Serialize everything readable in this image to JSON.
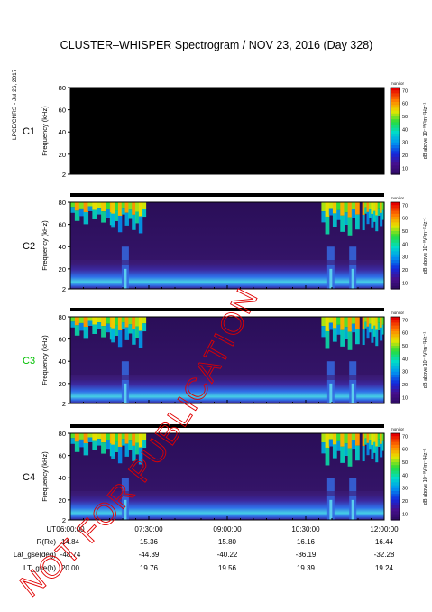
{
  "title": "CLUSTER–WHISPER Spectrogram / NOV 23, 2016 (Day 328)",
  "side_note": "LPCE/CNRS - Jul 26, 2017",
  "watermark": "NOT FOR PUBLICATION",
  "colors": {
    "background": "#ffffff",
    "watermark": "#e00000",
    "c3_label": "#00c000",
    "spectrum_bg": "#2a0e58",
    "empty_panel": "#000000"
  },
  "chart_data": {
    "type": "heatmap",
    "title": "CLUSTER–WHISPER Spectrogram / NOV 23, 2016 (Day 328)",
    "ylabel": "Frequency (kHz)",
    "yticks": [
      "2",
      "20",
      "40",
      "60",
      "80"
    ],
    "ylim": [
      2,
      80
    ],
    "x_ticks": [
      "06:00:00",
      "07:30:00",
      "09:00:00",
      "10:30:00",
      "12:00:00"
    ],
    "colorbar": {
      "label": "dB above 10⁻⁸V²m⁻²Hz⁻¹",
      "small_label": "monitor",
      "ticks": [
        "10",
        "20",
        "30",
        "40",
        "50",
        "60",
        "70"
      ],
      "range": [
        5,
        72
      ]
    },
    "panels": [
      {
        "name": "C1",
        "label_color": "#000000",
        "empty": true
      },
      {
        "name": "C2",
        "label_color": "#000000",
        "empty": false
      },
      {
        "name": "C3",
        "label_color": "#00c000",
        "empty": false
      },
      {
        "name": "C4",
        "label_color": "#000000",
        "empty": false
      }
    ],
    "ephemeris": {
      "rows": [
        {
          "label": "UT",
          "values": [
            "06:00:00",
            "07:30:00",
            "09:00:00",
            "10:30:00",
            "12:00:00"
          ]
        },
        {
          "label": "R(Re)",
          "values": [
            "14.84",
            "15.36",
            "15.80",
            "16.16",
            "16.44"
          ]
        },
        {
          "label": "Lat_gse(deg)",
          "values": [
            "-48.74",
            "-44.39",
            "-40.22",
            "-36.19",
            "-32.28"
          ]
        },
        {
          "label": "LT_gse(h)",
          "values": [
            "20.00",
            "19.76",
            "19.56",
            "19.39",
            "19.24"
          ]
        }
      ]
    }
  }
}
